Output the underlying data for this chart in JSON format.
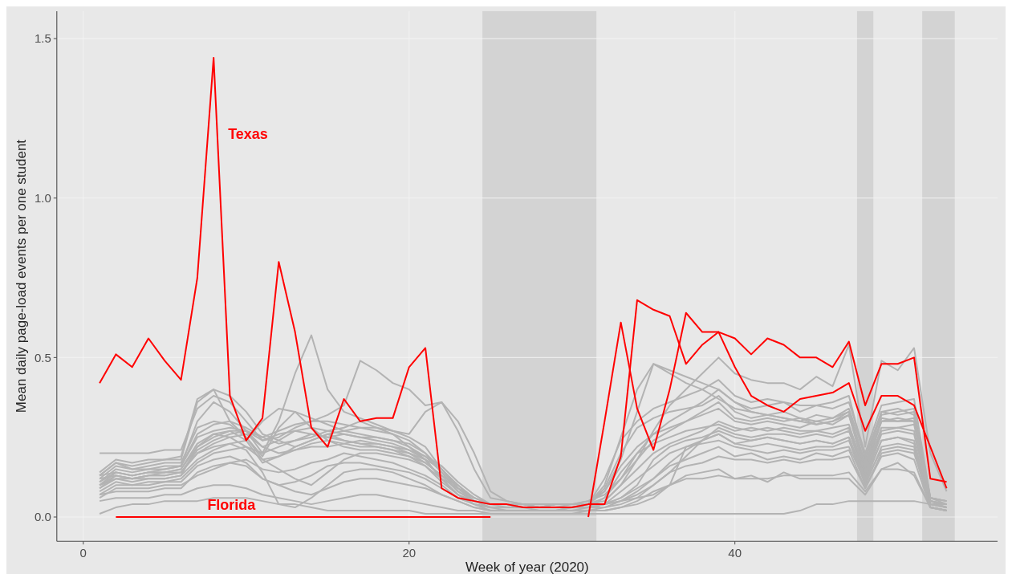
{
  "chart_data": {
    "type": "line",
    "xlabel": "Week of year (2020)",
    "ylabel": "Mean daily page-load events per one student",
    "x": [
      1,
      2,
      3,
      4,
      5,
      6,
      7,
      8,
      9,
      10,
      11,
      12,
      13,
      14,
      15,
      16,
      17,
      18,
      19,
      20,
      21,
      22,
      23,
      24,
      25,
      26,
      27,
      28,
      29,
      30,
      31,
      32,
      33,
      34,
      35,
      36,
      37,
      38,
      39,
      40,
      41,
      42,
      43,
      44,
      45,
      46,
      47,
      48,
      49,
      50,
      51,
      52,
      53
    ],
    "xlim": [
      -1.625,
      56.125
    ],
    "xticks": [
      0,
      20,
      40
    ],
    "ylim": [
      -0.076,
      1.586
    ],
    "yticks": [
      {
        "value": 0,
        "label": "0.0"
      },
      0.5,
      {
        "value": 1,
        "label": "1.0"
      },
      1.5
    ],
    "grid": true,
    "bands": [
      {
        "axis": "x",
        "from": 24.5,
        "to": 31.5,
        "color": "#d3d3d3"
      },
      {
        "axis": "x",
        "from": 47.5,
        "to": 48.5,
        "color": "#d3d3d3"
      },
      {
        "axis": "x",
        "from": 51.5,
        "to": 53.5,
        "color": "#d3d3d3"
      }
    ],
    "series": [
      {
        "color": "#b3b3b3",
        "values": [
          0.1,
          0.14,
          0.13,
          0.14,
          0.15,
          0.16,
          0.3,
          0.36,
          0.33,
          0.27,
          0.2,
          0.3,
          0.45,
          0.57,
          0.4,
          0.33,
          0.31,
          0.29,
          0.27,
          0.25,
          0.22,
          0.15,
          0.09,
          0.06,
          0.04,
          0.04,
          0.03,
          0.03,
          0.03,
          0.03,
          0.04,
          0.06,
          0.12,
          0.2,
          0.26,
          0.3,
          0.33,
          0.36,
          0.4,
          0.36,
          0.34,
          0.35,
          0.36,
          0.33,
          0.35,
          0.36,
          0.38,
          0.18,
          0.32,
          0.33,
          0.34,
          0.06,
          0.05
        ]
      },
      {
        "color": "#b3b3b3",
        "values": [
          0.2,
          0.2,
          0.2,
          0.2,
          0.21,
          0.21,
          0.34,
          0.38,
          0.36,
          0.3,
          0.24,
          0.25,
          0.28,
          0.3,
          0.32,
          0.35,
          0.49,
          0.46,
          0.42,
          0.4,
          0.35,
          0.36,
          0.27,
          0.15,
          0.06,
          0.05,
          0.04,
          0.04,
          0.04,
          0.04,
          0.05,
          0.08,
          0.18,
          0.33,
          0.48,
          0.46,
          0.44,
          0.42,
          0.4,
          0.36,
          0.33,
          0.32,
          0.31,
          0.3,
          0.29,
          0.3,
          0.32,
          0.14,
          0.3,
          0.31,
          0.3,
          0.05,
          0.04
        ]
      },
      {
        "color": "#b3b3b3",
        "values": [
          0.13,
          0.17,
          0.16,
          0.17,
          0.18,
          0.18,
          0.36,
          0.4,
          0.38,
          0.33,
          0.26,
          0.24,
          0.22,
          0.24,
          0.26,
          0.27,
          0.28,
          0.27,
          0.26,
          0.24,
          0.2,
          0.14,
          0.08,
          0.05,
          0.04,
          0.04,
          0.04,
          0.03,
          0.03,
          0.04,
          0.04,
          0.05,
          0.1,
          0.18,
          0.27,
          0.35,
          0.4,
          0.45,
          0.5,
          0.45,
          0.43,
          0.42,
          0.42,
          0.4,
          0.44,
          0.41,
          0.54,
          0.22,
          0.49,
          0.46,
          0.53,
          0.2,
          0.08
        ]
      },
      {
        "color": "#b3b3b3",
        "values": [
          0.09,
          0.12,
          0.11,
          0.12,
          0.12,
          0.13,
          0.22,
          0.26,
          0.25,
          0.22,
          0.2,
          0.22,
          0.24,
          0.25,
          0.27,
          0.28,
          0.3,
          0.28,
          0.26,
          0.22,
          0.18,
          0.12,
          0.07,
          0.05,
          0.04,
          0.03,
          0.03,
          0.03,
          0.03,
          0.03,
          0.04,
          0.1,
          0.25,
          0.4,
          0.48,
          0.45,
          0.42,
          0.4,
          0.37,
          0.34,
          0.33,
          0.32,
          0.33,
          0.31,
          0.3,
          0.31,
          0.33,
          0.16,
          0.33,
          0.32,
          0.33,
          0.04,
          0.03
        ]
      },
      {
        "color": "#b3b3b3",
        "values": [
          0.01,
          0.03,
          0.04,
          0.04,
          0.05,
          0.05,
          0.05,
          0.06,
          0.06,
          0.06,
          0.05,
          0.04,
          0.04,
          0.03,
          0.02,
          0.02,
          0.02,
          0.02,
          0.02,
          0.02,
          0.01,
          0.01,
          0.01,
          0.01,
          0.01,
          0.01,
          0.01,
          0.01,
          0.01,
          0.01,
          0.01,
          0.01,
          0.01,
          0.01,
          0.01,
          0.01,
          0.01,
          0.01,
          0.01,
          0.01,
          0.01,
          0.01,
          0.01,
          0.02,
          0.04,
          0.04,
          0.05,
          0.05,
          0.05,
          0.05,
          0.05,
          0.04,
          0.04
        ]
      },
      {
        "color": "#b3b3b3",
        "values": [
          0.05,
          0.06,
          0.06,
          0.06,
          0.07,
          0.07,
          0.09,
          0.1,
          0.1,
          0.09,
          0.07,
          0.06,
          0.05,
          0.04,
          0.05,
          0.06,
          0.07,
          0.07,
          0.06,
          0.05,
          0.04,
          0.03,
          0.02,
          0.02,
          0.01,
          0.01,
          0.01,
          0.01,
          0.01,
          0.01,
          0.02,
          0.02,
          0.03,
          0.05,
          0.08,
          0.1,
          0.12,
          0.12,
          0.13,
          0.12,
          0.12,
          0.12,
          0.13,
          0.13,
          0.13,
          0.13,
          0.14,
          0.08,
          0.15,
          0.15,
          0.14,
          0.03,
          0.02
        ]
      },
      {
        "color": "#b3b3b3",
        "values": [
          0.07,
          0.08,
          0.08,
          0.08,
          0.09,
          0.09,
          0.14,
          0.16,
          0.17,
          0.16,
          0.12,
          0.1,
          0.08,
          0.07,
          0.09,
          0.11,
          0.12,
          0.12,
          0.11,
          0.1,
          0.09,
          0.07,
          0.05,
          0.03,
          0.02,
          0.02,
          0.02,
          0.02,
          0.02,
          0.02,
          0.02,
          0.03,
          0.05,
          0.06,
          0.07,
          0.1,
          0.13,
          0.14,
          0.15,
          0.12,
          0.13,
          0.11,
          0.14,
          0.12,
          0.12,
          0.12,
          0.12,
          0.07,
          0.15,
          0.17,
          0.13,
          0.03,
          0.02
        ]
      },
      {
        "color": "#b3b3b3",
        "values": [
          0.12,
          0.13,
          0.12,
          0.13,
          0.13,
          0.14,
          0.2,
          0.22,
          0.23,
          0.21,
          0.14,
          0.04,
          0.03,
          0.06,
          0.1,
          0.14,
          0.15,
          0.15,
          0.14,
          0.12,
          0.1,
          0.07,
          0.05,
          0.03,
          0.02,
          0.02,
          0.02,
          0.02,
          0.02,
          0.02,
          0.03,
          0.04,
          0.06,
          0.09,
          0.12,
          0.16,
          0.18,
          0.2,
          0.22,
          0.19,
          0.2,
          0.18,
          0.19,
          0.18,
          0.2,
          0.19,
          0.21,
          0.09,
          0.2,
          0.21,
          0.2,
          0.04,
          0.03
        ]
      },
      {
        "color": "#b3b3b3",
        "values": [
          0.11,
          0.15,
          0.14,
          0.15,
          0.15,
          0.16,
          0.25,
          0.27,
          0.28,
          0.27,
          0.22,
          0.24,
          0.27,
          0.26,
          0.25,
          0.26,
          0.25,
          0.24,
          0.23,
          0.21,
          0.18,
          0.12,
          0.07,
          0.04,
          0.03,
          0.03,
          0.03,
          0.03,
          0.03,
          0.03,
          0.04,
          0.08,
          0.16,
          0.22,
          0.26,
          0.28,
          0.3,
          0.33,
          0.36,
          0.31,
          0.3,
          0.31,
          0.3,
          0.31,
          0.29,
          0.3,
          0.33,
          0.17,
          0.3,
          0.3,
          0.31,
          0.06,
          0.04
        ]
      },
      {
        "color": "#b3b3b3",
        "values": [
          0.13,
          0.17,
          0.15,
          0.16,
          0.17,
          0.17,
          0.28,
          0.3,
          0.29,
          0.25,
          0.19,
          0.28,
          0.33,
          0.31,
          0.29,
          0.27,
          0.26,
          0.25,
          0.24,
          0.22,
          0.19,
          0.14,
          0.09,
          0.05,
          0.04,
          0.04,
          0.04,
          0.03,
          0.04,
          0.04,
          0.04,
          0.05,
          0.1,
          0.15,
          0.2,
          0.23,
          0.25,
          0.27,
          0.3,
          0.28,
          0.27,
          0.28,
          0.27,
          0.26,
          0.27,
          0.26,
          0.28,
          0.13,
          0.27,
          0.28,
          0.27,
          0.05,
          0.04
        ]
      },
      {
        "color": "#b3b3b3",
        "values": [
          0.09,
          0.13,
          0.12,
          0.13,
          0.13,
          0.14,
          0.2,
          0.23,
          0.25,
          0.26,
          0.22,
          0.2,
          0.21,
          0.22,
          0.22,
          0.23,
          0.22,
          0.22,
          0.21,
          0.2,
          0.17,
          0.13,
          0.1,
          0.06,
          0.04,
          0.04,
          0.03,
          0.03,
          0.03,
          0.03,
          0.04,
          0.04,
          0.06,
          0.1,
          0.18,
          0.22,
          0.24,
          0.25,
          0.27,
          0.25,
          0.24,
          0.25,
          0.24,
          0.23,
          0.24,
          0.23,
          0.25,
          0.12,
          0.24,
          0.25,
          0.24,
          0.04,
          0.03
        ]
      },
      {
        "color": "#b3b3b3",
        "values": [
          0.1,
          0.12,
          0.12,
          0.12,
          0.12,
          0.13,
          0.18,
          0.21,
          0.23,
          0.24,
          0.17,
          0.19,
          0.22,
          0.24,
          0.26,
          0.24,
          0.23,
          0.23,
          0.22,
          0.21,
          0.19,
          0.16,
          0.11,
          0.07,
          0.04,
          0.04,
          0.03,
          0.03,
          0.03,
          0.03,
          0.03,
          0.04,
          0.05,
          0.08,
          0.12,
          0.17,
          0.21,
          0.24,
          0.26,
          0.23,
          0.22,
          0.23,
          0.22,
          0.21,
          0.22,
          0.22,
          0.24,
          0.1,
          0.22,
          0.23,
          0.22,
          0.04,
          0.03
        ]
      },
      {
        "color": "#b3b3b3",
        "values": [
          0.14,
          0.18,
          0.17,
          0.18,
          0.18,
          0.19,
          0.37,
          0.4,
          0.3,
          0.25,
          0.18,
          0.19,
          0.21,
          0.23,
          0.24,
          0.23,
          0.24,
          0.23,
          0.22,
          0.2,
          0.18,
          0.15,
          0.1,
          0.05,
          0.04,
          0.04,
          0.04,
          0.03,
          0.04,
          0.04,
          0.04,
          0.09,
          0.2,
          0.28,
          0.31,
          0.33,
          0.34,
          0.35,
          0.38,
          0.33,
          0.31,
          0.32,
          0.31,
          0.3,
          0.32,
          0.31,
          0.34,
          0.19,
          0.33,
          0.34,
          0.32,
          0.05,
          0.04
        ]
      },
      {
        "color": "#b3b3b3",
        "values": [
          0.08,
          0.11,
          0.1,
          0.11,
          0.11,
          0.12,
          0.17,
          0.2,
          0.21,
          0.22,
          0.18,
          0.15,
          0.12,
          0.1,
          0.14,
          0.18,
          0.2,
          0.2,
          0.19,
          0.18,
          0.16,
          0.12,
          0.09,
          0.05,
          0.03,
          0.03,
          0.03,
          0.02,
          0.02,
          0.03,
          0.03,
          0.04,
          0.08,
          0.12,
          0.16,
          0.2,
          0.22,
          0.23,
          0.24,
          0.22,
          0.21,
          0.2,
          0.21,
          0.2,
          0.21,
          0.21,
          0.22,
          0.11,
          0.21,
          0.22,
          0.21,
          0.03,
          0.02
        ]
      },
      {
        "color": "#b3b3b3",
        "values": [
          0.12,
          0.16,
          0.15,
          0.15,
          0.16,
          0.16,
          0.26,
          0.29,
          0.3,
          0.28,
          0.25,
          0.27,
          0.29,
          0.3,
          0.3,
          0.29,
          0.28,
          0.28,
          0.27,
          0.26,
          0.33,
          0.36,
          0.3,
          0.2,
          0.08,
          0.05,
          0.04,
          0.04,
          0.04,
          0.04,
          0.05,
          0.07,
          0.12,
          0.18,
          0.24,
          0.27,
          0.3,
          0.32,
          0.34,
          0.3,
          0.29,
          0.3,
          0.29,
          0.28,
          0.3,
          0.29,
          0.32,
          0.15,
          0.31,
          0.3,
          0.3,
          0.05,
          0.04
        ]
      },
      {
        "color": "#b3b3b3",
        "values": [
          0.11,
          0.14,
          0.13,
          0.14,
          0.14,
          0.15,
          0.22,
          0.25,
          0.27,
          0.24,
          0.3,
          0.34,
          0.33,
          0.28,
          0.24,
          0.22,
          0.21,
          0.21,
          0.2,
          0.19,
          0.17,
          0.13,
          0.08,
          0.05,
          0.03,
          0.03,
          0.03,
          0.03,
          0.03,
          0.03,
          0.03,
          0.04,
          0.05,
          0.07,
          0.1,
          0.14,
          0.19,
          0.24,
          0.28,
          0.26,
          0.25,
          0.26,
          0.26,
          0.25,
          0.26,
          0.25,
          0.27,
          0.12,
          0.26,
          0.27,
          0.26,
          0.05,
          0.03
        ]
      },
      {
        "color": "#b3b3b3",
        "values": [
          0.06,
          0.09,
          0.09,
          0.09,
          0.1,
          0.1,
          0.13,
          0.15,
          0.17,
          0.18,
          0.15,
          0.14,
          0.15,
          0.17,
          0.18,
          0.2,
          0.19,
          0.18,
          0.17,
          0.15,
          0.13,
          0.1,
          0.06,
          0.04,
          0.02,
          0.02,
          0.02,
          0.02,
          0.02,
          0.02,
          0.02,
          0.02,
          0.03,
          0.04,
          0.06,
          0.1,
          0.22,
          0.24,
          0.26,
          0.23,
          0.24,
          0.25,
          0.24,
          0.23,
          0.24,
          0.23,
          0.25,
          0.11,
          0.24,
          0.25,
          0.23,
          0.03,
          0.02
        ]
      },
      {
        "color": "#b3b3b3",
        "values": [
          0.1,
          0.13,
          0.12,
          0.13,
          0.14,
          0.14,
          0.21,
          0.24,
          0.26,
          0.27,
          0.24,
          0.26,
          0.27,
          0.28,
          0.27,
          0.26,
          0.25,
          0.25,
          0.24,
          0.23,
          0.2,
          0.15,
          0.09,
          0.06,
          0.04,
          0.04,
          0.04,
          0.03,
          0.04,
          0.04,
          0.04,
          0.12,
          0.24,
          0.3,
          0.34,
          0.36,
          0.38,
          0.4,
          0.43,
          0.38,
          0.36,
          0.37,
          0.36,
          0.35,
          0.35,
          0.34,
          0.36,
          0.2,
          0.35,
          0.36,
          0.37,
          0.06,
          0.05
        ]
      },
      {
        "color": "#b3b3b3",
        "values": [
          0.13,
          0.14,
          0.13,
          0.14,
          0.14,
          0.15,
          0.23,
          0.26,
          0.27,
          0.27,
          0.25,
          0.23,
          0.24,
          0.26,
          0.25,
          0.24,
          0.23,
          0.22,
          0.21,
          0.19,
          0.16,
          0.11,
          0.07,
          0.04,
          0.03,
          0.03,
          0.03,
          0.03,
          0.03,
          0.03,
          0.03,
          0.06,
          0.14,
          0.2,
          0.23,
          0.25,
          0.27,
          0.28,
          0.29,
          0.27,
          0.28,
          0.27,
          0.28,
          0.27,
          0.27,
          0.28,
          0.29,
          0.14,
          0.28,
          0.28,
          0.29,
          0.06,
          0.05
        ]
      },
      {
        "color": "#b3b3b3",
        "values": [
          0.07,
          0.1,
          0.1,
          0.1,
          0.11,
          0.11,
          0.16,
          0.18,
          0.19,
          0.17,
          0.12,
          0.1,
          0.11,
          0.13,
          0.16,
          0.17,
          0.17,
          0.16,
          0.15,
          0.14,
          0.12,
          0.09,
          0.06,
          0.04,
          0.03,
          0.02,
          0.02,
          0.02,
          0.02,
          0.03,
          0.03,
          0.03,
          0.04,
          0.06,
          0.1,
          0.14,
          0.16,
          0.17,
          0.19,
          0.18,
          0.18,
          0.17,
          0.18,
          0.17,
          0.18,
          0.18,
          0.19,
          0.09,
          0.19,
          0.2,
          0.18,
          0.03,
          0.02
        ]
      },
      {
        "name": "Texas",
        "color": "#ff0000",
        "values": [
          0.42,
          0.51,
          0.47,
          0.56,
          0.49,
          0.43,
          0.75,
          1.44,
          0.38,
          0.24,
          0.31,
          0.8,
          0.58,
          0.28,
          0.22,
          0.37,
          0.3,
          0.31,
          0.31,
          0.47,
          0.53,
          0.09,
          0.06,
          0.05,
          0.04,
          0.04,
          0.03,
          0.03,
          0.03,
          0.03,
          0.04,
          0.04,
          0.19,
          0.68,
          0.65,
          0.63,
          0.48,
          0.54,
          0.58,
          0.56,
          0.51,
          0.56,
          0.54,
          0.5,
          0.5,
          0.47,
          0.55,
          0.35,
          0.48,
          0.48,
          0.5,
          0.12,
          0.11
        ]
      },
      {
        "name": "Florida",
        "color": "#ff0000",
        "values": [
          null,
          0,
          0,
          0,
          0,
          0,
          0,
          0,
          0,
          0,
          0,
          0,
          0,
          0,
          0,
          0,
          0,
          0,
          0,
          0,
          0,
          0,
          0,
          0,
          0,
          null,
          null,
          null,
          null,
          null,
          0,
          0.3,
          0.61,
          0.34,
          0.21,
          0.4,
          0.64,
          0.58,
          0.58,
          0.47,
          0.38,
          0.35,
          0.33,
          0.37,
          0.38,
          0.39,
          0.42,
          0.27,
          0.38,
          0.38,
          0.35,
          0.22,
          0.09
        ]
      }
    ]
  }
}
